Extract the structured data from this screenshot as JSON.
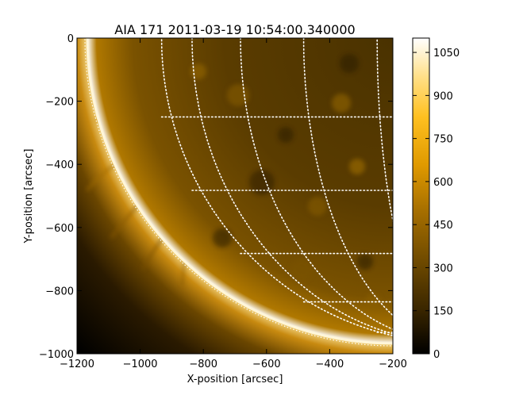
{
  "title": "AIA 171 2011-03-19 10:54:00.340000",
  "x_axis": {
    "label": "X-position [arcsec]",
    "range": [
      -1200,
      -200
    ],
    "ticks": [
      -1200,
      -1000,
      -800,
      -600,
      -400,
      -200
    ],
    "tick_labels": [
      "−1200",
      "−1000",
      "−800",
      "−600",
      "−400",
      "−200"
    ]
  },
  "y_axis": {
    "label": "Y-position [arcsec]",
    "range": [
      -1000,
      0
    ],
    "ticks": [
      0,
      -200,
      -400,
      -600,
      -800,
      -1000
    ],
    "tick_labels": [
      "0",
      "−200",
      "−400",
      "−600",
      "−800",
      "−1000"
    ]
  },
  "colorbar": {
    "range": [
      0,
      1100
    ],
    "ticks": [
      0,
      150,
      300,
      450,
      600,
      750,
      900,
      1050
    ],
    "tick_labels": [
      "0",
      "150",
      "300",
      "450",
      "600",
      "750",
      "900",
      "1050"
    ],
    "colors": [
      "#000000",
      "#3a2600",
      "#7a5200",
      "#c08000",
      "#f0a800",
      "#ffd24a",
      "#fff2c8",
      "#ffffff"
    ]
  },
  "limb": {
    "center": [
      0,
      0
    ],
    "radius_arcsec": 965
  },
  "grid": {
    "lat_deg": [
      -15,
      -30,
      -45,
      -60,
      -75
    ],
    "lon_deg": [
      -15,
      -30,
      -45,
      -60,
      -75
    ]
  }
}
